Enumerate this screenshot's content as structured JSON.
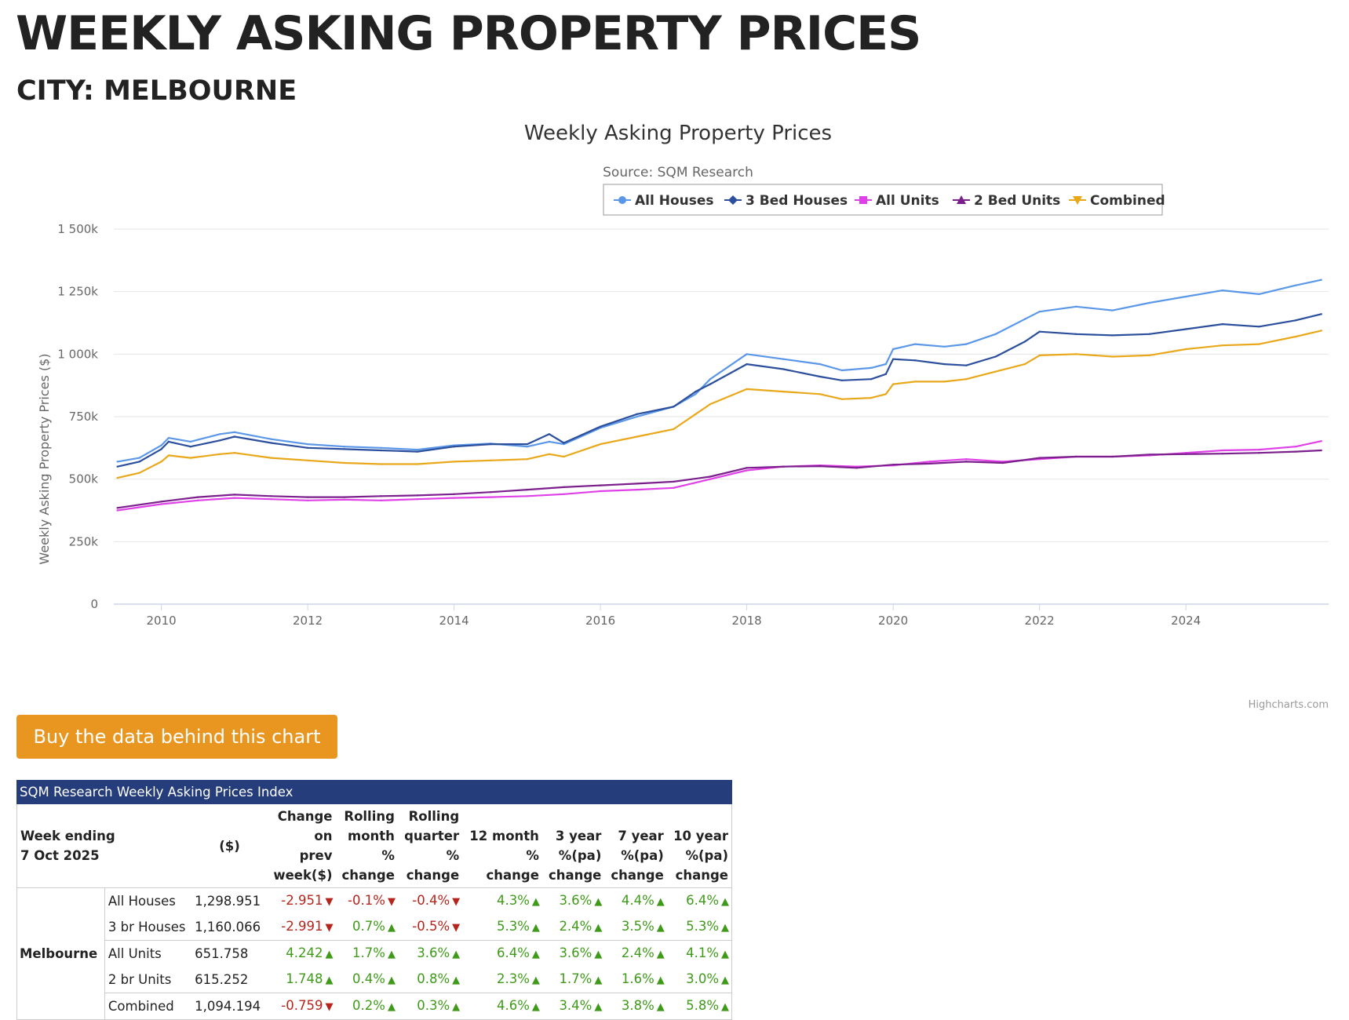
{
  "header": {
    "title": "WEEKLY ASKING PROPERTY PRICES",
    "subtitle": "CITY: MELBOURNE"
  },
  "chart_data": {
    "type": "line",
    "title": "Weekly Asking Property Prices",
    "subtitle": "Source: SQM Research",
    "ylabel": "Weekly Asking Property Prices ($)",
    "xlabel": "",
    "ylim": [
      0,
      1500000
    ],
    "xlim": [
      2009.35,
      2025.95
    ],
    "y_ticks": [
      0,
      250000,
      500000,
      750000,
      1000000,
      1250000,
      1500000
    ],
    "y_tick_labels": [
      "0",
      "250k",
      "500k",
      "750k",
      "1 000k",
      "1 250k",
      "1 500k"
    ],
    "x_ticks": [
      2010,
      2012,
      2014,
      2016,
      2018,
      2020,
      2022,
      2024
    ],
    "x_tick_labels": [
      "2010",
      "2012",
      "2014",
      "2016",
      "2018",
      "2020",
      "2022",
      "2024"
    ],
    "grid": true,
    "legend_position": "top-right",
    "credits": "Highcharts.com",
    "series": [
      {
        "name": "All Houses",
        "color": "#5b97e8",
        "marker": "circle",
        "x": [
          2009.4,
          2009.7,
          2010.0,
          2010.1,
          2010.4,
          2010.8,
          2011.0,
          2011.5,
          2012.0,
          2012.5,
          2013.0,
          2013.5,
          2014.0,
          2014.5,
          2015.0,
          2015.3,
          2015.5,
          2016.0,
          2016.5,
          2017.0,
          2017.3,
          2017.5,
          2018.0,
          2018.5,
          2019.0,
          2019.3,
          2019.7,
          2019.9,
          2020.0,
          2020.3,
          2020.7,
          2021.0,
          2021.4,
          2021.8,
          2022.0,
          2022.5,
          2023.0,
          2023.5,
          2024.0,
          2024.5,
          2025.0,
          2025.5,
          2025.85
        ],
        "y": [
          570000,
          585000,
          635000,
          665000,
          650000,
          680000,
          688000,
          660000,
          640000,
          630000,
          625000,
          618000,
          635000,
          642000,
          630000,
          650000,
          640000,
          705000,
          750000,
          790000,
          840000,
          900000,
          1000000,
          980000,
          960000,
          935000,
          945000,
          960000,
          1020000,
          1040000,
          1030000,
          1040000,
          1080000,
          1140000,
          1170000,
          1190000,
          1175000,
          1205000,
          1230000,
          1255000,
          1240000,
          1275000,
          1297000
        ]
      },
      {
        "name": "3 Bed Houses",
        "color": "#2b4f9c",
        "marker": "diamond",
        "x": [
          2009.4,
          2009.7,
          2010.0,
          2010.1,
          2010.4,
          2010.8,
          2011.0,
          2011.5,
          2012.0,
          2012.5,
          2013.0,
          2013.5,
          2014.0,
          2014.5,
          2015.0,
          2015.3,
          2015.5,
          2016.0,
          2016.5,
          2017.0,
          2017.3,
          2017.5,
          2018.0,
          2018.5,
          2019.0,
          2019.3,
          2019.7,
          2019.9,
          2020.0,
          2020.3,
          2020.7,
          2021.0,
          2021.4,
          2021.8,
          2022.0,
          2022.5,
          2023.0,
          2023.5,
          2024.0,
          2024.5,
          2025.0,
          2025.5,
          2025.85
        ],
        "y": [
          550000,
          570000,
          620000,
          650000,
          630000,
          655000,
          670000,
          645000,
          625000,
          620000,
          615000,
          610000,
          630000,
          640000,
          640000,
          680000,
          645000,
          710000,
          760000,
          790000,
          850000,
          880000,
          960000,
          940000,
          910000,
          895000,
          900000,
          920000,
          980000,
          975000,
          960000,
          955000,
          990000,
          1050000,
          1090000,
          1080000,
          1075000,
          1080000,
          1100000,
          1120000,
          1110000,
          1135000,
          1160000
        ]
      },
      {
        "name": "All Units",
        "color": "#e040e8",
        "marker": "square",
        "x": [
          2009.4,
          2010.0,
          2010.5,
          2011.0,
          2011.5,
          2012.0,
          2012.5,
          2013.0,
          2013.5,
          2014.0,
          2014.5,
          2015.0,
          2015.5,
          2016.0,
          2016.5,
          2017.0,
          2017.5,
          2018.0,
          2018.5,
          2019.0,
          2019.5,
          2020.0,
          2020.5,
          2021.0,
          2021.5,
          2022.0,
          2022.5,
          2023.0,
          2023.5,
          2024.0,
          2024.5,
          2025.0,
          2025.5,
          2025.85
        ],
        "y": [
          375000,
          400000,
          415000,
          425000,
          420000,
          415000,
          418000,
          415000,
          420000,
          425000,
          428000,
          432000,
          440000,
          452000,
          458000,
          465000,
          500000,
          535000,
          550000,
          555000,
          550000,
          555000,
          570000,
          580000,
          570000,
          580000,
          590000,
          590000,
          595000,
          605000,
          615000,
          618000,
          630000,
          652000
        ]
      },
      {
        "name": "2 Bed Units",
        "color": "#7b1f8c",
        "marker": "triangle",
        "x": [
          2009.4,
          2010.0,
          2010.5,
          2011.0,
          2011.5,
          2012.0,
          2012.5,
          2013.0,
          2013.5,
          2014.0,
          2014.5,
          2015.0,
          2015.5,
          2016.0,
          2016.5,
          2017.0,
          2017.5,
          2018.0,
          2018.5,
          2019.0,
          2019.5,
          2020.0,
          2020.5,
          2021.0,
          2021.5,
          2022.0,
          2022.5,
          2023.0,
          2023.5,
          2024.0,
          2024.5,
          2025.0,
          2025.5,
          2025.85
        ],
        "y": [
          385000,
          410000,
          428000,
          438000,
          432000,
          428000,
          428000,
          432000,
          435000,
          440000,
          448000,
          458000,
          468000,
          475000,
          482000,
          490000,
          510000,
          545000,
          550000,
          552000,
          545000,
          558000,
          562000,
          570000,
          565000,
          585000,
          590000,
          590000,
          598000,
          600000,
          602000,
          605000,
          610000,
          615000
        ]
      },
      {
        "name": "Combined",
        "color": "#e8a81a",
        "marker": "triangle-down",
        "x": [
          2009.4,
          2009.7,
          2010.0,
          2010.1,
          2010.4,
          2010.8,
          2011.0,
          2011.5,
          2012.0,
          2012.5,
          2013.0,
          2013.5,
          2014.0,
          2014.5,
          2015.0,
          2015.3,
          2015.5,
          2016.0,
          2016.5,
          2017.0,
          2017.3,
          2017.5,
          2018.0,
          2018.5,
          2019.0,
          2019.3,
          2019.7,
          2019.9,
          2020.0,
          2020.3,
          2020.7,
          2021.0,
          2021.4,
          2021.8,
          2022.0,
          2022.5,
          2023.0,
          2023.5,
          2024.0,
          2024.5,
          2025.0,
          2025.5,
          2025.85
        ],
        "y": [
          505000,
          525000,
          570000,
          595000,
          585000,
          600000,
          605000,
          585000,
          575000,
          565000,
          560000,
          560000,
          570000,
          575000,
          580000,
          600000,
          590000,
          640000,
          670000,
          700000,
          760000,
          800000,
          860000,
          850000,
          840000,
          820000,
          825000,
          840000,
          880000,
          890000,
          890000,
          900000,
          930000,
          960000,
          995000,
          1000000,
          990000,
          995000,
          1020000,
          1035000,
          1040000,
          1070000,
          1094000
        ]
      }
    ]
  },
  "buy_button": {
    "label": "Buy the data behind this chart"
  },
  "table": {
    "caption": "SQM Research Weekly Asking Prices Index",
    "headers": {
      "week_ending": "Week ending",
      "date": "7 Oct 2025",
      "value": "($)",
      "change_prev_week": [
        "Change",
        "on",
        "prev",
        "week($)"
      ],
      "rolling_month": [
        "Rolling",
        "month",
        "%",
        "change"
      ],
      "rolling_quarter": [
        "Rolling",
        "quarter",
        "%",
        "change"
      ],
      "twelve_month": [
        "12 month",
        "%",
        "change"
      ],
      "three_year": [
        "3 year",
        "%(pa)",
        "change"
      ],
      "seven_year": [
        "7 year",
        "%(pa)",
        "change"
      ],
      "ten_year": [
        "10 year",
        "%(pa)",
        "change"
      ]
    },
    "city": "Melbourne",
    "rows": [
      {
        "type": "All Houses",
        "value": "1,298.951",
        "cells": [
          {
            "v": "-2.951",
            "d": "down"
          },
          {
            "v": "-0.1%",
            "d": "down"
          },
          {
            "v": "-0.4%",
            "d": "down"
          },
          {
            "v": "4.3%",
            "d": "up"
          },
          {
            "v": "3.6%",
            "d": "up"
          },
          {
            "v": "4.4%",
            "d": "up"
          },
          {
            "v": "6.4%",
            "d": "up"
          }
        ]
      },
      {
        "type": "3 br Houses",
        "value": "1,160.066",
        "cells": [
          {
            "v": "-2.991",
            "d": "down"
          },
          {
            "v": "0.7%",
            "d": "up"
          },
          {
            "v": "-0.5%",
            "d": "down"
          },
          {
            "v": "5.3%",
            "d": "up"
          },
          {
            "v": "2.4%",
            "d": "up"
          },
          {
            "v": "3.5%",
            "d": "up"
          },
          {
            "v": "5.3%",
            "d": "up"
          }
        ]
      },
      {
        "type": "All Units",
        "value": "651.758",
        "cells": [
          {
            "v": "4.242",
            "d": "up"
          },
          {
            "v": "1.7%",
            "d": "up"
          },
          {
            "v": "3.6%",
            "d": "up"
          },
          {
            "v": "6.4%",
            "d": "up"
          },
          {
            "v": "3.6%",
            "d": "up"
          },
          {
            "v": "2.4%",
            "d": "up"
          },
          {
            "v": "4.1%",
            "d": "up"
          }
        ]
      },
      {
        "type": "2 br Units",
        "value": "615.252",
        "cells": [
          {
            "v": "1.748",
            "d": "up"
          },
          {
            "v": "0.4%",
            "d": "up"
          },
          {
            "v": "0.8%",
            "d": "up"
          },
          {
            "v": "2.3%",
            "d": "up"
          },
          {
            "v": "1.7%",
            "d": "up"
          },
          {
            "v": "1.6%",
            "d": "up"
          },
          {
            "v": "3.0%",
            "d": "up"
          }
        ]
      },
      {
        "type": "Combined",
        "value": "1,094.194",
        "cells": [
          {
            "v": "-0.759",
            "d": "down"
          },
          {
            "v": "0.2%",
            "d": "up"
          },
          {
            "v": "0.3%",
            "d": "up"
          },
          {
            "v": "4.6%",
            "d": "up"
          },
          {
            "v": "3.4%",
            "d": "up"
          },
          {
            "v": "3.8%",
            "d": "up"
          },
          {
            "v": "5.8%",
            "d": "up"
          }
        ]
      }
    ],
    "arrow_glyphs": {
      "up": "▲",
      "down": "▼"
    }
  }
}
